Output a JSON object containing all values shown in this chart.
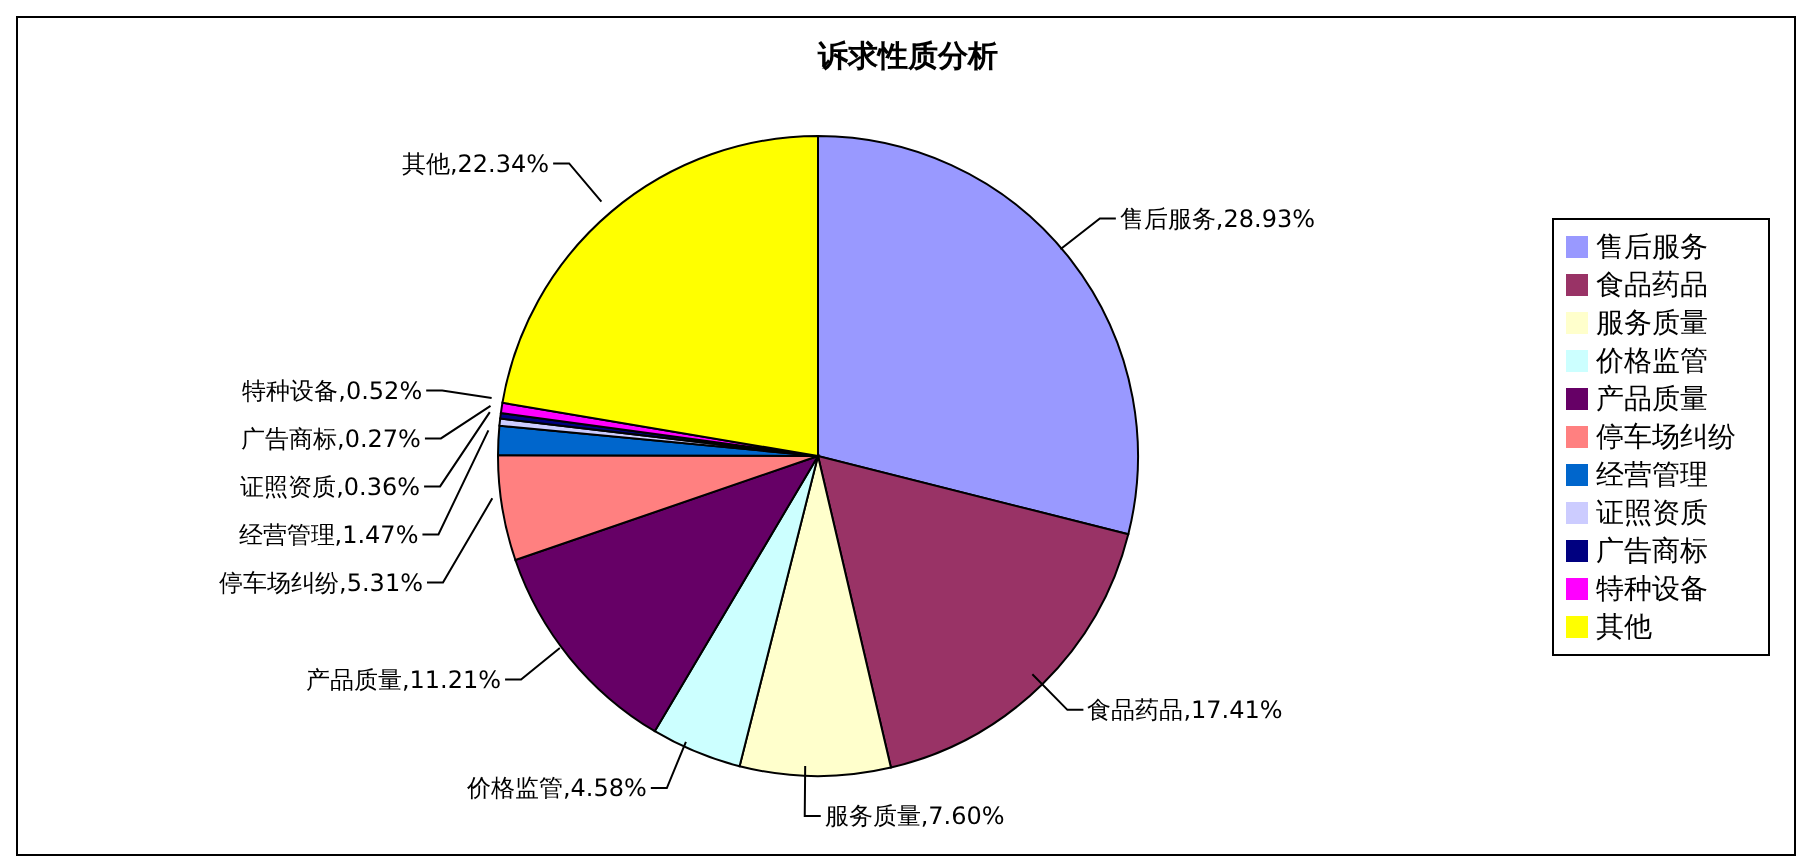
{
  "chart_data": {
    "type": "pie",
    "title": "诉求性质分析",
    "categories": [
      "售后服务",
      "食品药品",
      "服务质量",
      "价格监管",
      "产品质量",
      "停车场纠纷",
      "经营管理",
      "证照资质",
      "广告商标",
      "特种设备",
      "其他"
    ],
    "values": [
      28.93,
      17.41,
      7.6,
      4.58,
      11.21,
      5.31,
      1.47,
      0.36,
      0.27,
      0.52,
      22.34
    ],
    "value_labels": [
      "售后服务,28.93%",
      "食品药品,17.41%",
      "服务质量,7.60%",
      "价格监管,4.58%",
      "产品质量,11.21%",
      "停车场纠纷,5.31%",
      "经营管理,1.47%",
      "证照资质,0.36%",
      "广告商标,0.27%",
      "特种设备,0.52%",
      "其他,22.34%"
    ],
    "colors": [
      "#9999ff",
      "#993366",
      "#ffffcc",
      "#ccffff",
      "#660066",
      "#ff8080",
      "#0066cc",
      "#ccccff",
      "#000080",
      "#ff00ff",
      "#ffff00"
    ],
    "legend": "right"
  }
}
